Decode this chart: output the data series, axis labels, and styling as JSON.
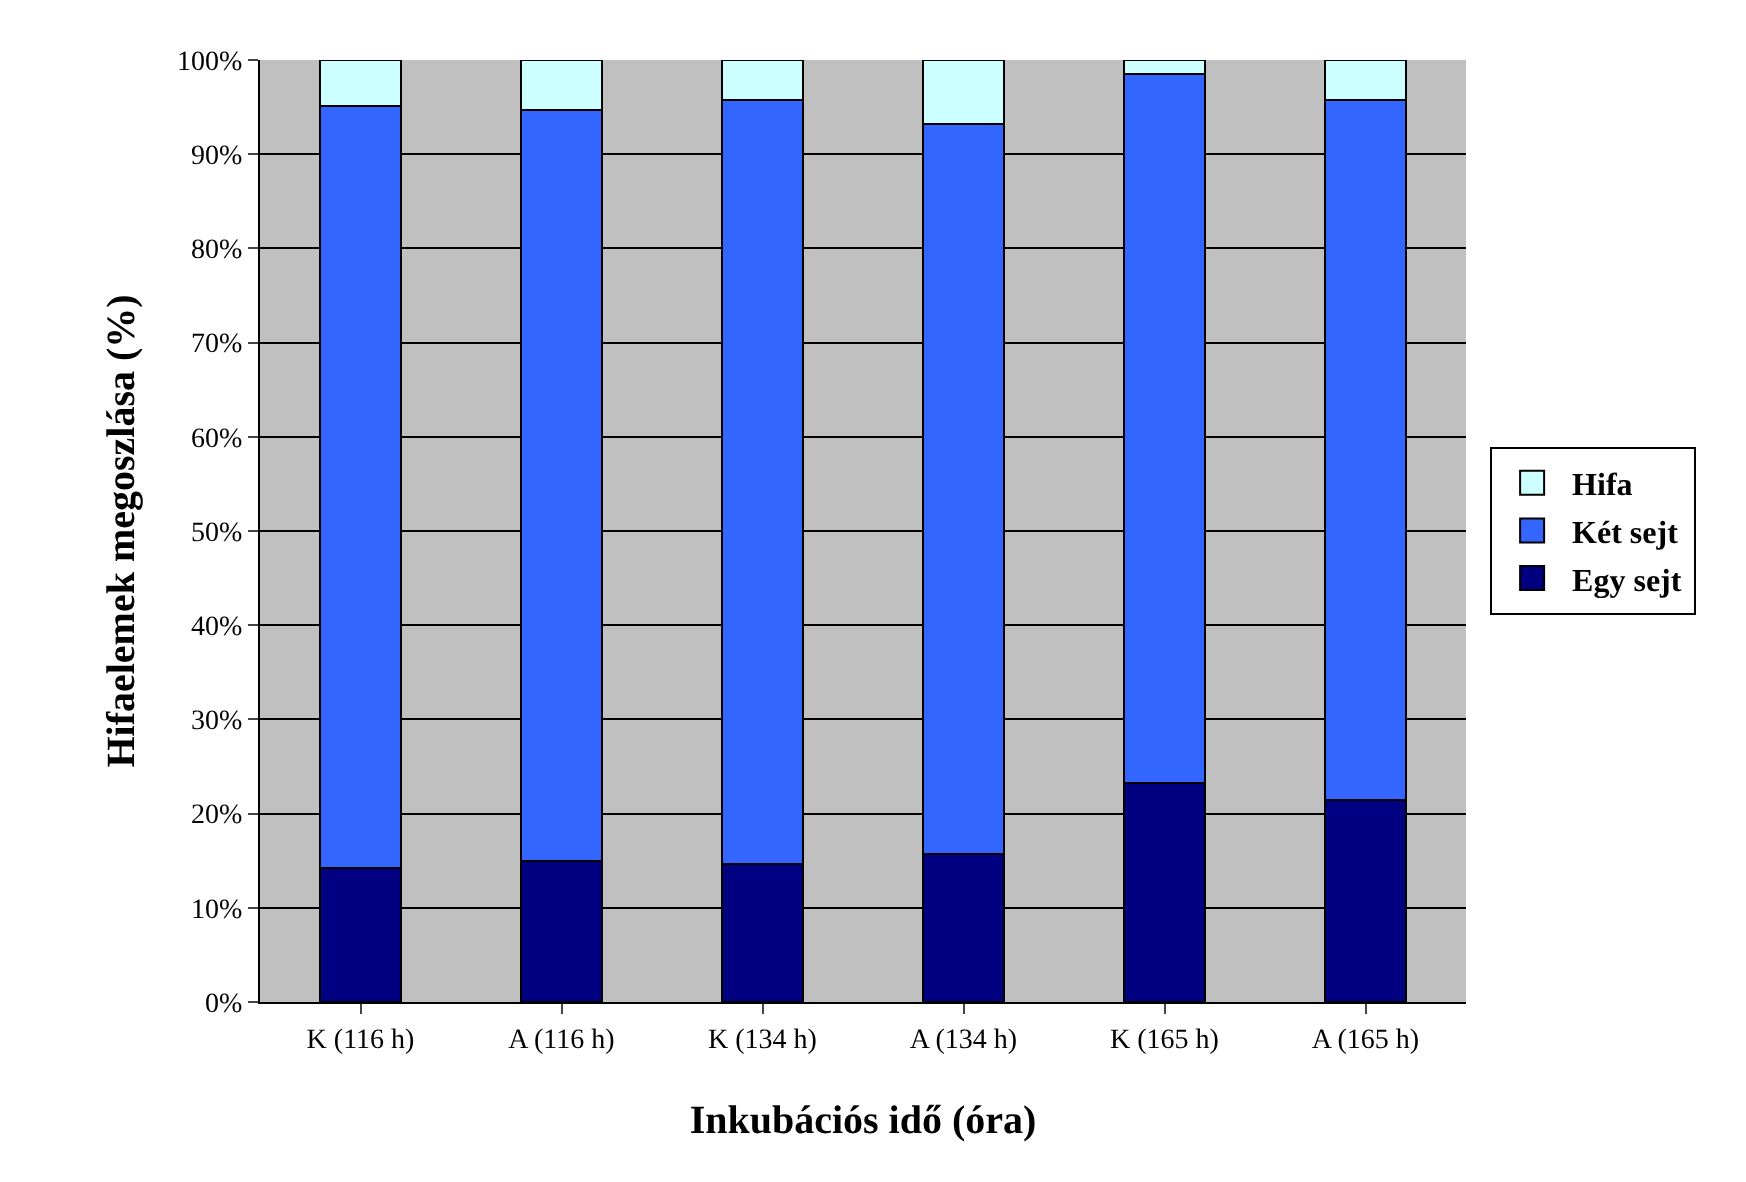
{
  "chart_data": {
    "type": "bar",
    "stacked": true,
    "xlabel": "Inkubációs idő (óra)",
    "ylabel": "Hifaelemek megoszlása (%)",
    "categories": [
      "K (116 h)",
      "A (116 h)",
      "K (134 h)",
      "A (134 h)",
      "K (165 h)",
      "A (165 h)"
    ],
    "series": [
      {
        "name": "Egy sejt",
        "color": "#000080",
        "values": [
          14.2,
          15,
          14.6,
          15.7,
          23.3,
          21.4
        ]
      },
      {
        "name": "Két sejt",
        "color": "#3366ff",
        "values": [
          80.9,
          79.7,
          81.2,
          77.5,
          75.2,
          74.4
        ]
      },
      {
        "name": "Hifa",
        "color": "#ccffff",
        "values": [
          4.9,
          5.3,
          4.2,
          6.8,
          1.5,
          4.2
        ]
      }
    ],
    "ylim": [
      0,
      100
    ],
    "yticks": [
      {
        "value": 0,
        "label": "0%"
      },
      {
        "value": 10,
        "label": "10%"
      },
      {
        "value": 20,
        "label": "20%"
      },
      {
        "value": 30,
        "label": "30%"
      },
      {
        "value": 40,
        "label": "40%"
      },
      {
        "value": 50,
        "label": "50%"
      },
      {
        "value": 60,
        "label": "60%"
      },
      {
        "value": 70,
        "label": "70%"
      },
      {
        "value": 80,
        "label": "80%"
      },
      {
        "value": 90,
        "label": "90%"
      },
      {
        "value": 100,
        "label": "100%"
      }
    ],
    "grid": "y",
    "legend": "right"
  }
}
